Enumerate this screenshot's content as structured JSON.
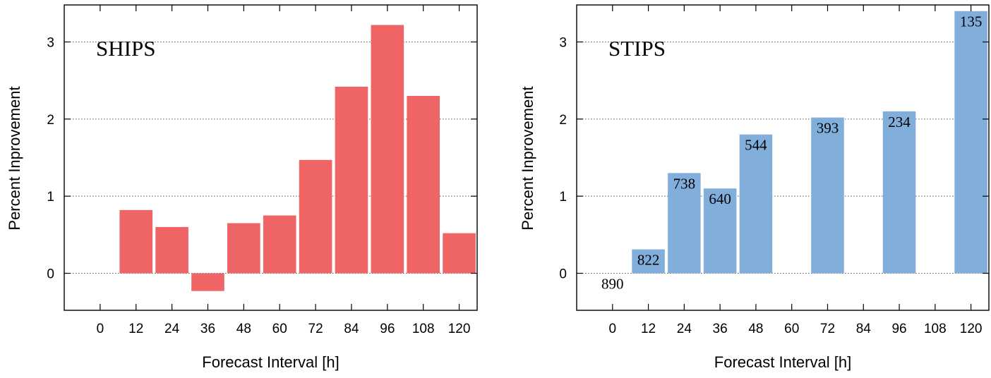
{
  "chart_data": [
    {
      "type": "bar",
      "title": "SHIPS",
      "xlabel": "Forecast Interval [h]",
      "ylabel": "Percent Inprovement",
      "xlim": [
        -12,
        126
      ],
      "ylim": [
        -0.48,
        3.48
      ],
      "x_ticks": [
        0,
        12,
        24,
        36,
        48,
        60,
        72,
        84,
        96,
        108,
        120
      ],
      "y_ticks": [
        0,
        1,
        2,
        3
      ],
      "grid": "horizontal dotted",
      "bar_color": "#ef6566",
      "bar_width": 11,
      "x": [
        12,
        24,
        36,
        48,
        60,
        72,
        84,
        96,
        108,
        120
      ],
      "values": [
        0.82,
        0.6,
        -0.23,
        0.65,
        0.75,
        1.47,
        2.42,
        3.22,
        2.3,
        0.52
      ],
      "labels": []
    },
    {
      "type": "bar",
      "title": "STIPS",
      "xlabel": "Forecast Interval [h]",
      "ylabel": "Percent Inprovement",
      "xlim": [
        -12,
        126
      ],
      "ylim": [
        -0.48,
        3.48
      ],
      "x_ticks": [
        0,
        12,
        24,
        36,
        48,
        60,
        72,
        84,
        96,
        108,
        120
      ],
      "y_ticks": [
        0,
        1,
        2,
        3
      ],
      "grid": "horizontal dotted",
      "bar_color": "#82aedb",
      "bar_width": 11,
      "x": [
        0,
        12,
        24,
        36,
        48,
        72,
        96,
        120
      ],
      "values": [
        0,
        0.31,
        1.3,
        1.1,
        1.8,
        2.02,
        2.1,
        3.4
      ],
      "labels": [
        "890",
        "822",
        "738",
        "640",
        "544",
        "393",
        "234",
        "135"
      ]
    }
  ]
}
